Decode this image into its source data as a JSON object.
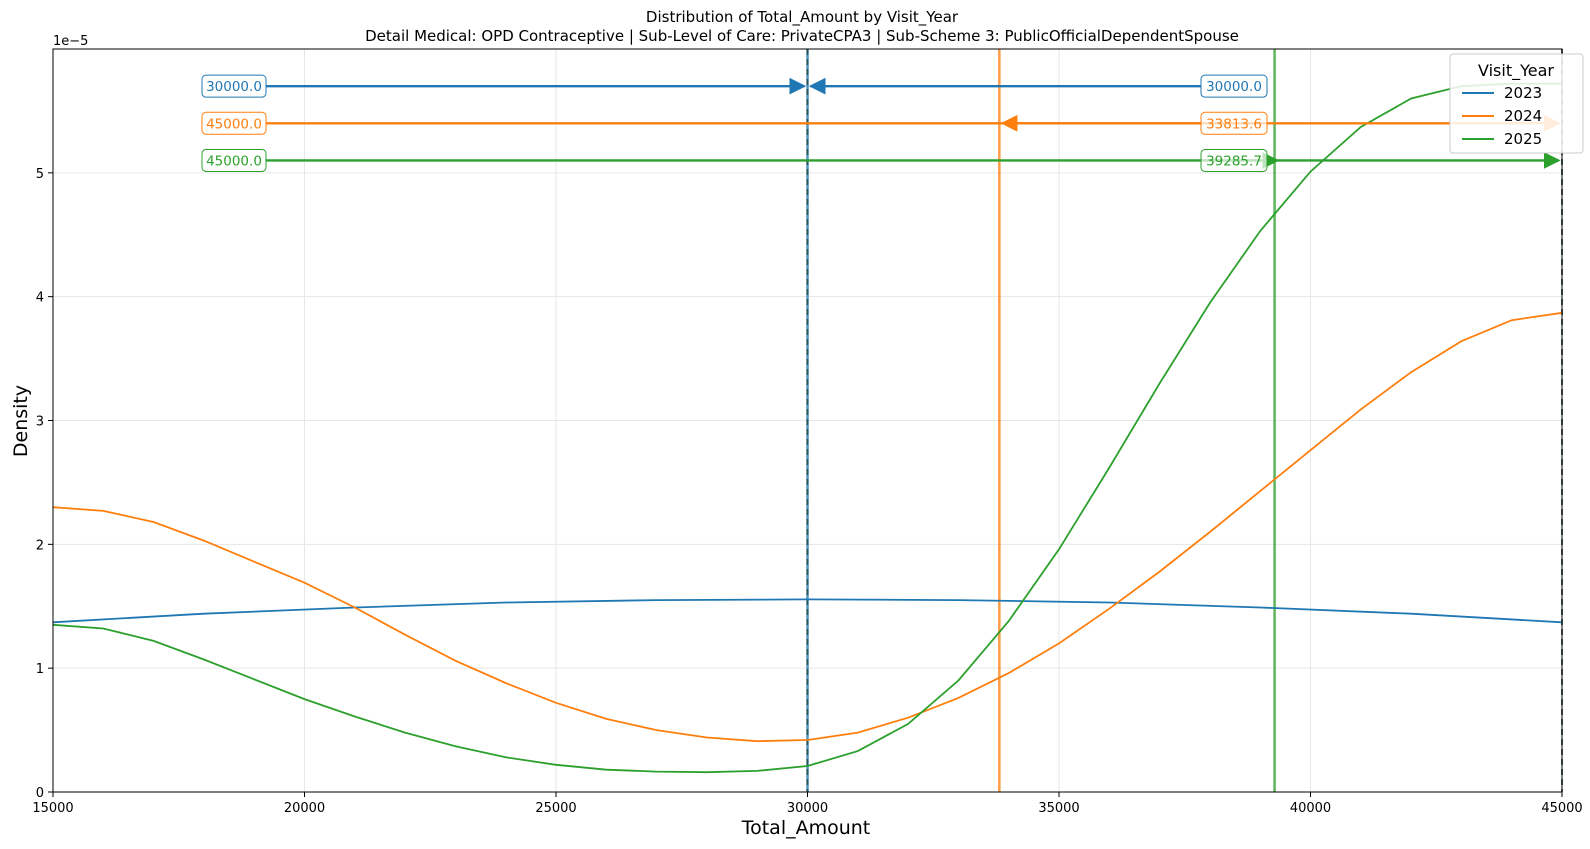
{
  "chart_data": {
    "type": "line",
    "title": "Distribution of Total_Amount by Visit_Year",
    "subtitle": "Detail Medical: OPD Contraceptive | Sub-Level of Care: PrivateCPA3 | Sub-Scheme 3: PublicOfficialDependentSpouse",
    "xlabel": "Total_Amount",
    "ylabel": "Density",
    "y_scale_label": "1e−5",
    "xlim": [
      15000,
      45000
    ],
    "ylim": [
      0,
      6.0
    ],
    "x_ticks": [
      15000,
      20000,
      25000,
      30000,
      35000,
      40000,
      45000
    ],
    "x_tick_labels": [
      "15000",
      "20000",
      "25000",
      "30000",
      "35000",
      "40000",
      "45000"
    ],
    "y_ticks": [
      0,
      1,
      2,
      3,
      4,
      5
    ],
    "y_tick_labels": [
      "0",
      "1",
      "2",
      "3",
      "4",
      "5"
    ],
    "grid": true,
    "legend": {
      "title": "Visit_Year",
      "placement": "top-right"
    },
    "series": [
      {
        "name": "2023",
        "color": "#1f77b4",
        "x": [
          15000,
          18000,
          21000,
          24000,
          27000,
          30000,
          33000,
          36000,
          39000,
          42000,
          45000
        ],
        "y": [
          1.37,
          1.44,
          1.49,
          1.53,
          1.55,
          1.555,
          1.55,
          1.53,
          1.49,
          1.44,
          1.37
        ]
      },
      {
        "name": "2024",
        "color": "#ff7f0e",
        "x": [
          15000,
          16000,
          17000,
          18000,
          19000,
          20000,
          21000,
          22000,
          23000,
          24000,
          25000,
          26000,
          27000,
          28000,
          29000,
          30000,
          31000,
          32000,
          33000,
          34000,
          35000,
          36000,
          37000,
          38000,
          39000,
          40000,
          41000,
          42000,
          43000,
          44000,
          45000
        ],
        "y": [
          2.3,
          2.27,
          2.18,
          2.03,
          1.86,
          1.69,
          1.49,
          1.27,
          1.06,
          0.88,
          0.72,
          0.59,
          0.5,
          0.44,
          0.41,
          0.42,
          0.48,
          0.6,
          0.76,
          0.96,
          1.2,
          1.48,
          1.78,
          2.1,
          2.43,
          2.76,
          3.09,
          3.39,
          3.64,
          3.81,
          3.87
        ]
      },
      {
        "name": "2025",
        "color": "#2ca02c",
        "x": [
          15000,
          16000,
          17000,
          18000,
          19000,
          20000,
          21000,
          22000,
          23000,
          24000,
          25000,
          26000,
          27000,
          28000,
          29000,
          30000,
          31000,
          32000,
          33000,
          34000,
          35000,
          36000,
          37000,
          38000,
          39000,
          40000,
          41000,
          42000,
          43000,
          44000,
          45000
        ],
        "y": [
          1.35,
          1.32,
          1.22,
          1.07,
          0.91,
          0.75,
          0.61,
          0.48,
          0.37,
          0.28,
          0.22,
          0.18,
          0.165,
          0.16,
          0.17,
          0.21,
          0.33,
          0.55,
          0.9,
          1.38,
          1.96,
          2.62,
          3.3,
          3.95,
          4.53,
          5.01,
          5.37,
          5.6,
          5.7,
          5.72,
          5.72
        ]
      }
    ],
    "vertical_lines": [
      {
        "series": "2023",
        "x": 30000,
        "color": "#1f77b4",
        "style": "solid"
      },
      {
        "series": "2023",
        "x": 30000,
        "color": "#1f77b4",
        "style": "dashed"
      },
      {
        "series": "2024",
        "x": 33813.6,
        "color": "#ff7f0e",
        "style": "solid"
      },
      {
        "series": "2024",
        "x": 45000,
        "color": "#ff7f0e",
        "style": "dashed"
      },
      {
        "series": "2025",
        "x": 39285.7,
        "color": "#2ca02c",
        "style": "solid"
      },
      {
        "series": "2025",
        "x": 45000,
        "color": "#2ca02c",
        "style": "dashed"
      }
    ],
    "annotations": [
      {
        "series": "2023",
        "y": 5.7,
        "left_label": "30000.0",
        "right_label": "30000.0",
        "left_target": 30000,
        "right_target": 30000,
        "color": "#1f77b4"
      },
      {
        "series": "2024",
        "y": 5.4,
        "left_label": "45000.0",
        "right_label": "33813.6",
        "left_target": 45000,
        "right_target": 33813.6,
        "color": "#ff7f0e"
      },
      {
        "series": "2025",
        "y": 5.1,
        "left_label": "45000.0",
        "right_label": "39285.7",
        "left_target": 45000,
        "right_target": 39285.7,
        "color": "#2ca02c"
      }
    ]
  }
}
